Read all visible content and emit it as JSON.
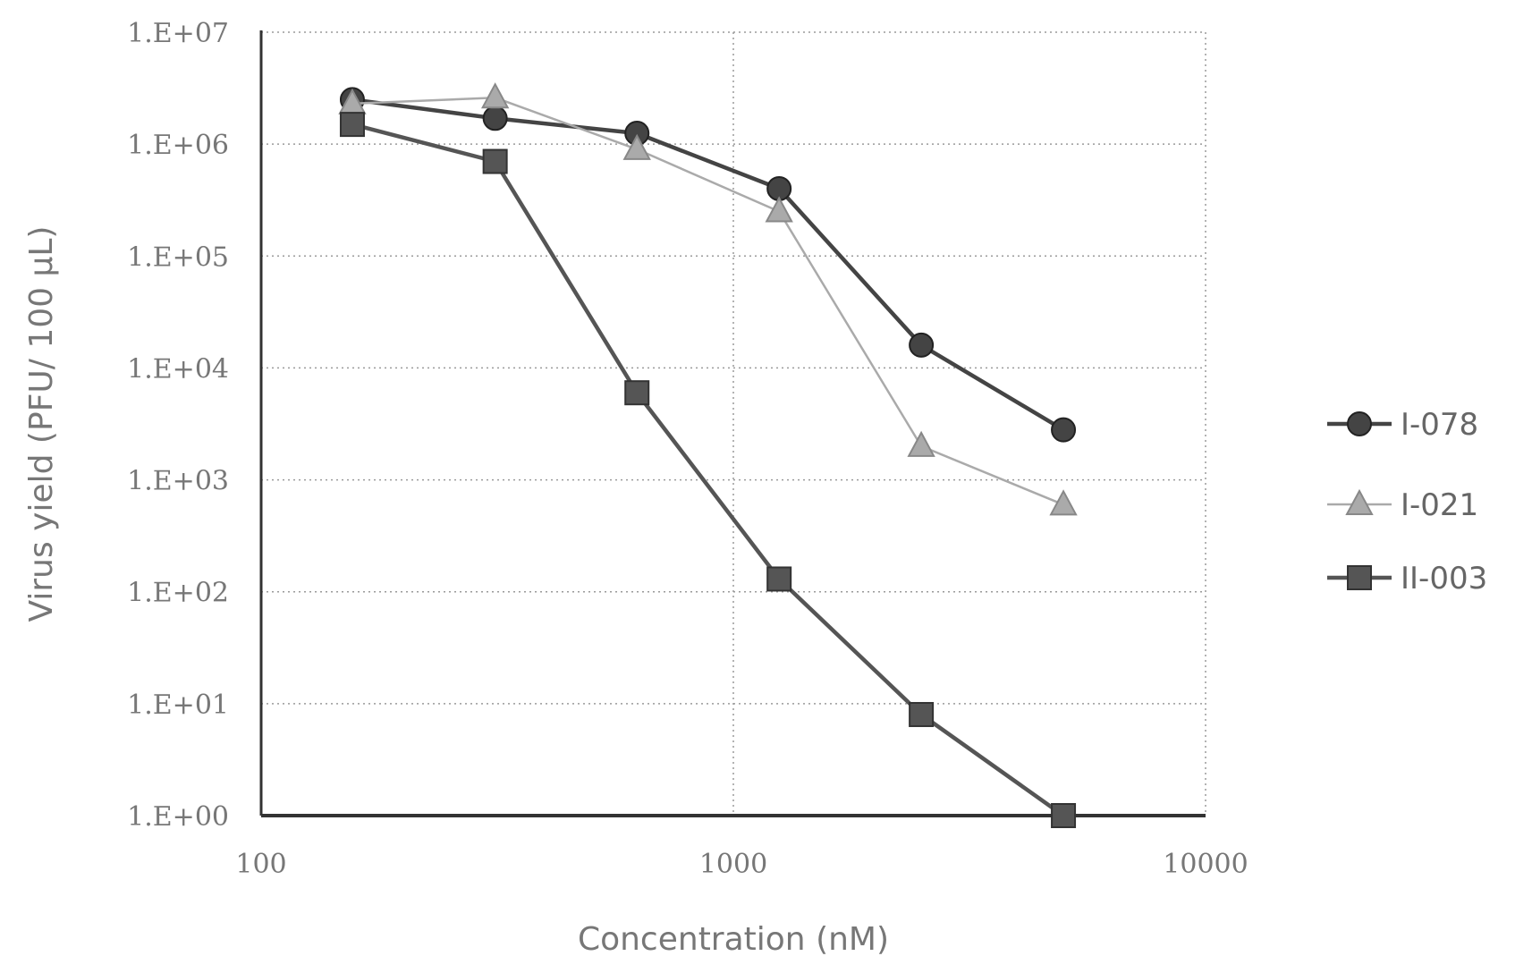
{
  "chart_data": {
    "type": "line",
    "title": "",
    "xlabel": "Concentration (nM)",
    "ylabel": "Virus yield (PFU/ 100 µL)",
    "x_scale": "log",
    "y_scale": "log",
    "xlim": [
      100,
      10000
    ],
    "ylim": [
      1,
      10000000
    ],
    "x_ticks": [
      100,
      1000,
      10000
    ],
    "x_tick_labels": [
      "100",
      "1000",
      "10000"
    ],
    "y_ticks": [
      1,
      10,
      100,
      1000,
      10000,
      100000,
      1000000,
      10000000
    ],
    "y_tick_labels": [
      "1.E+00",
      "1.E+01",
      "1.E+02",
      "1.E+03",
      "1.E+04",
      "1.E+05",
      "1.E+06",
      "1.E+07"
    ],
    "grid": true,
    "legend_position": "right",
    "series": [
      {
        "name": "I-078",
        "marker": "circle",
        "color": "#444444",
        "x": [
          156,
          313,
          625,
          1250,
          2500,
          5000
        ],
        "y": [
          2500000,
          1700000,
          1250000,
          400000,
          16000,
          2800
        ]
      },
      {
        "name": "I-021",
        "marker": "triangle",
        "color": "#aaaaaa",
        "x": [
          156,
          313,
          625,
          1250,
          2500,
          5000
        ],
        "y": [
          2300000,
          2600000,
          900000,
          250000,
          2000,
          600
        ]
      },
      {
        "name": "II-003",
        "marker": "square",
        "color": "#555555",
        "x": [
          156,
          313,
          625,
          1250,
          2500,
          5000
        ],
        "y": [
          1500000,
          700000,
          6000,
          130,
          8,
          1
        ]
      }
    ]
  }
}
